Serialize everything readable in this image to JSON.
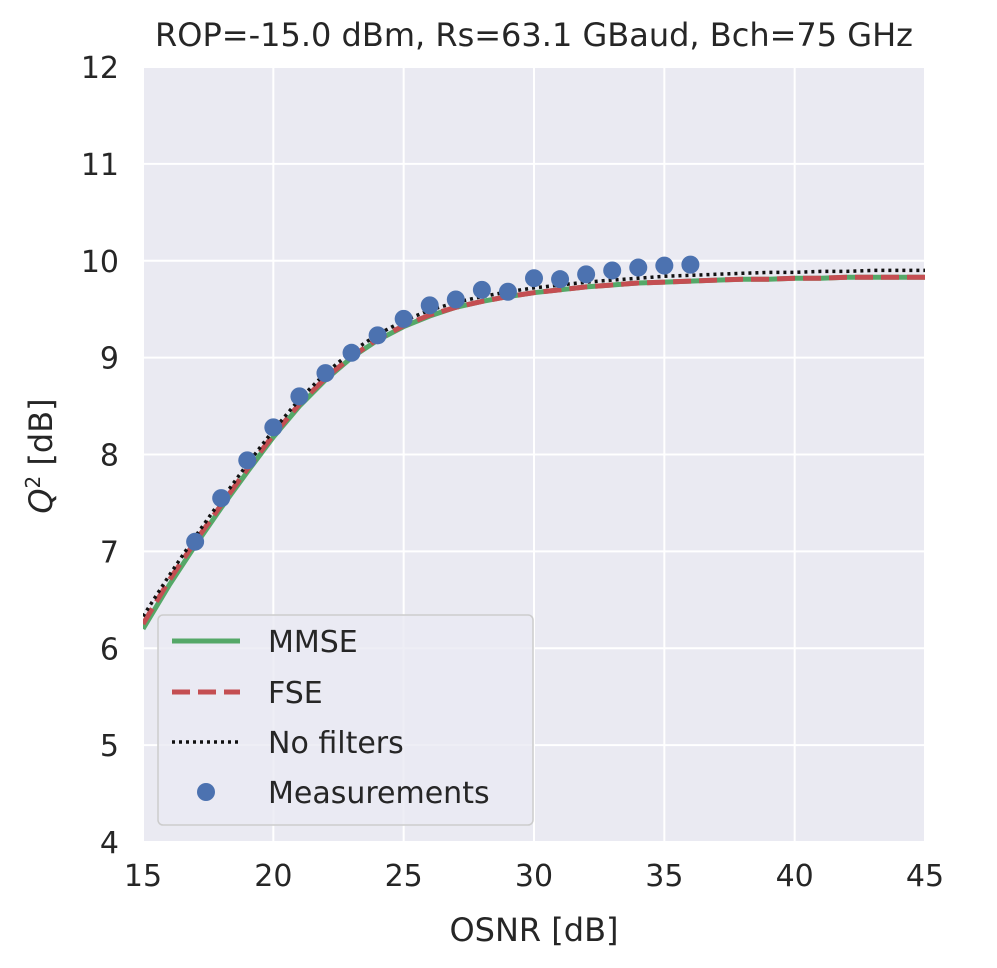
{
  "chart_data": {
    "type": "line",
    "title": "ROP=-15.0 dBm, Rs=63.1 GBaud, Bch=75 GHz",
    "xlabel": "OSNR [dB]",
    "ylabel_main": "Q",
    "ylabel_sup": "2",
    "ylabel_rest": " [dB]",
    "xlim": [
      15,
      45
    ],
    "ylim": [
      4,
      12
    ],
    "xticks": [
      15,
      20,
      25,
      30,
      35,
      40,
      45
    ],
    "yticks": [
      4,
      5,
      6,
      7,
      8,
      9,
      10,
      11,
      12
    ],
    "grid": true,
    "legend_position": "lower-left",
    "x": [
      15,
      16,
      17,
      18,
      19,
      20,
      21,
      22,
      23,
      24,
      25,
      26,
      27,
      28,
      29,
      30,
      31,
      32,
      33,
      34,
      35,
      36,
      37,
      38,
      39,
      40,
      41,
      42,
      43,
      44,
      45
    ],
    "series": [
      {
        "name": "MMSE",
        "style": "solid",
        "color": "#55a868",
        "values": [
          6.2,
          6.65,
          7.06,
          7.45,
          7.82,
          8.18,
          8.5,
          8.77,
          9.0,
          9.18,
          9.32,
          9.43,
          9.52,
          9.58,
          9.63,
          9.67,
          9.7,
          9.73,
          9.75,
          9.77,
          9.78,
          9.79,
          9.8,
          9.81,
          9.81,
          9.82,
          9.82,
          9.83,
          9.83,
          9.83,
          9.83
        ]
      },
      {
        "name": "FSE",
        "style": "dashed",
        "color": "#c44e52",
        "values": [
          6.25,
          6.7,
          7.1,
          7.48,
          7.85,
          8.2,
          8.52,
          8.79,
          9.01,
          9.19,
          9.33,
          9.44,
          9.52,
          9.58,
          9.63,
          9.67,
          9.7,
          9.73,
          9.75,
          9.77,
          9.78,
          9.79,
          9.8,
          9.81,
          9.81,
          9.82,
          9.82,
          9.83,
          9.83,
          9.83,
          9.83
        ]
      },
      {
        "name": "No filters",
        "style": "dotted",
        "color": "#111111",
        "values": [
          6.33,
          6.75,
          7.15,
          7.53,
          7.9,
          8.25,
          8.57,
          8.84,
          9.06,
          9.24,
          9.38,
          9.49,
          9.57,
          9.63,
          9.68,
          9.72,
          9.75,
          9.78,
          9.8,
          9.82,
          9.84,
          9.85,
          9.86,
          9.87,
          9.88,
          9.88,
          9.89,
          9.89,
          9.9,
          9.9,
          9.9
        ]
      },
      {
        "name": "Measurements",
        "style": "markers",
        "color": "#4c72b0",
        "x": [
          17,
          18,
          19,
          20,
          21,
          22,
          23,
          24,
          25,
          26,
          27,
          28,
          29,
          30,
          31,
          32,
          33,
          34,
          35,
          36
        ],
        "values": [
          7.1,
          7.55,
          7.94,
          8.28,
          8.6,
          8.84,
          9.05,
          9.23,
          9.4,
          9.54,
          9.6,
          9.7,
          9.68,
          9.82,
          9.81,
          9.86,
          9.9,
          9.93,
          9.95,
          9.96
        ]
      }
    ]
  }
}
